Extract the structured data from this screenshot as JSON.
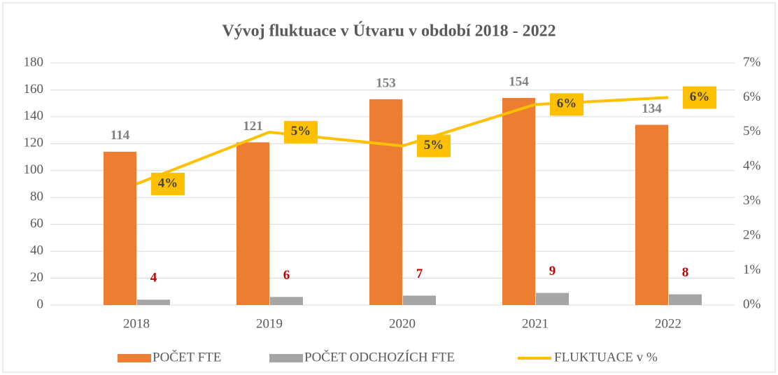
{
  "chart_data": {
    "type": "bar-line",
    "title": "Vývoj fluktuace v Útvaru v období 2018 - 2022",
    "categories": [
      "2018",
      "2019",
      "2020",
      "2021",
      "2022"
    ],
    "series": [
      {
        "name": "POČET FTE",
        "color": "#ed7d31",
        "values": [
          114,
          121,
          153,
          154,
          134
        ],
        "label_color": "#7f7f7f"
      },
      {
        "name": "POČET ODCHOZÍCH FTE",
        "color": "#a5a5a5",
        "values": [
          4,
          6,
          7,
          9,
          8
        ],
        "label_color": "#c00000"
      },
      {
        "name": "FLUKTUACE v %",
        "color": "#ffc000",
        "type": "line",
        "axis": "y2",
        "values": [
          3.5,
          5.0,
          4.6,
          5.8,
          6.0
        ],
        "value_labels": [
          "4%",
          "5%",
          "5%",
          "6%",
          "6%"
        ]
      }
    ],
    "ylim": [
      0,
      180
    ],
    "yticks": [
      0,
      20,
      40,
      60,
      80,
      100,
      120,
      140,
      160,
      180
    ],
    "y2lim": [
      0,
      7
    ],
    "y2ticks": [
      {
        "value": 0,
        "label": "0%"
      },
      {
        "value": 1,
        "label": "1%"
      },
      {
        "value": 2,
        "label": "2%"
      },
      {
        "value": 3,
        "label": "3%"
      },
      {
        "value": 4,
        "label": "4%"
      },
      {
        "value": 5,
        "label": "5%"
      },
      {
        "value": 6,
        "label": "6%"
      },
      {
        "value": 7,
        "label": "7%"
      }
    ],
    "grid": true,
    "legend": "bottom"
  }
}
